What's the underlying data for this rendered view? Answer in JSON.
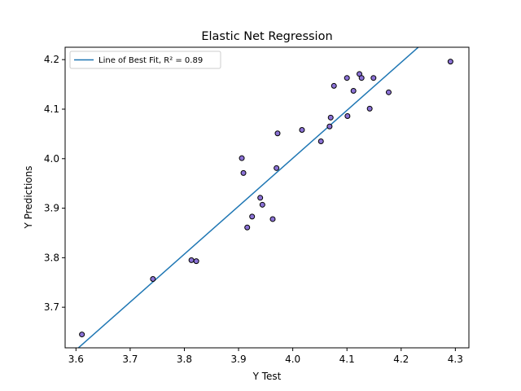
{
  "chart_data": {
    "type": "scatter",
    "title": "Elastic Net Regression",
    "xlabel": "Y Test",
    "ylabel": "Y Predictions",
    "xlim": [
      3.58,
      4.325
    ],
    "ylim": [
      3.618,
      4.225
    ],
    "xticks": [
      "3.6",
      "3.7",
      "3.8",
      "3.9",
      "4.0",
      "4.1",
      "4.2",
      "4.3"
    ],
    "yticks": [
      "3.7",
      "3.8",
      "3.9",
      "4.0",
      "4.1",
      "4.2"
    ],
    "grid": false,
    "legend_position": "upper-left",
    "legend": [
      {
        "label": "Line of Best Fit, R² = 0.89",
        "color": "#1f77b4"
      }
    ],
    "colors": {
      "points_fill": "#8b72d6",
      "points_edge": "#000000",
      "line": "#1f77b4"
    },
    "fit_line": {
      "slope": 0.968,
      "intercept": 0.1288
    },
    "points": [
      {
        "x": 3.611,
        "y": 3.645
      },
      {
        "x": 3.742,
        "y": 3.757
      },
      {
        "x": 3.813,
        "y": 3.795
      },
      {
        "x": 3.822,
        "y": 3.793
      },
      {
        "x": 3.906,
        "y": 4.001
      },
      {
        "x": 3.909,
        "y": 3.971
      },
      {
        "x": 3.916,
        "y": 3.861
      },
      {
        "x": 3.925,
        "y": 3.883
      },
      {
        "x": 3.94,
        "y": 3.921
      },
      {
        "x": 3.944,
        "y": 3.907
      },
      {
        "x": 3.963,
        "y": 3.878
      },
      {
        "x": 3.97,
        "y": 3.981
      },
      {
        "x": 3.972,
        "y": 4.051
      },
      {
        "x": 4.017,
        "y": 4.058
      },
      {
        "x": 4.052,
        "y": 4.035
      },
      {
        "x": 4.068,
        "y": 4.065
      },
      {
        "x": 4.07,
        "y": 4.083
      },
      {
        "x": 4.076,
        "y": 4.147
      },
      {
        "x": 4.1,
        "y": 4.163
      },
      {
        "x": 4.101,
        "y": 4.086
      },
      {
        "x": 4.112,
        "y": 4.137
      },
      {
        "x": 4.123,
        "y": 4.171
      },
      {
        "x": 4.127,
        "y": 4.163
      },
      {
        "x": 4.142,
        "y": 4.101
      },
      {
        "x": 4.149,
        "y": 4.163
      },
      {
        "x": 4.177,
        "y": 4.134
      },
      {
        "x": 4.291,
        "y": 4.196
      }
    ]
  }
}
